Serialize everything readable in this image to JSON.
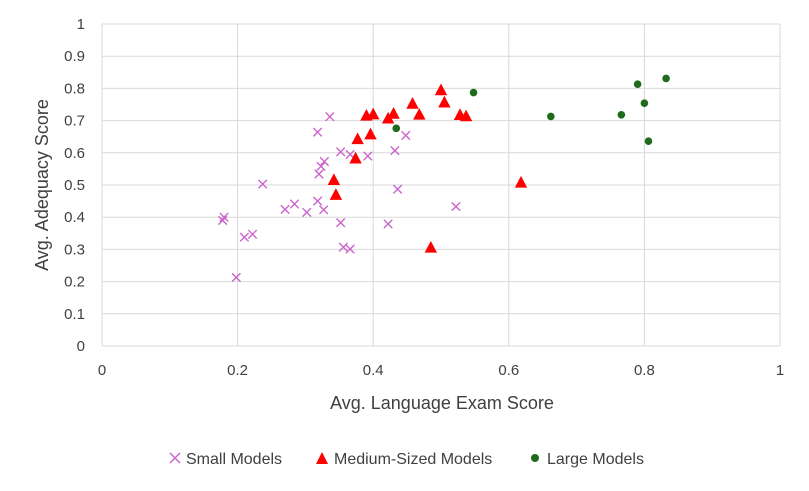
{
  "chart_data": {
    "type": "scatter",
    "title": "",
    "xlabel": "Avg. Language Exam Score",
    "ylabel": "Avg. Adequacy Score",
    "xlim": [
      0,
      1
    ],
    "ylim": [
      0,
      1
    ],
    "x_ticks": [
      0,
      0.2,
      0.4,
      0.6,
      0.8,
      1
    ],
    "x_tick_labels": [
      "0",
      "0.2",
      "0.4",
      "0.6",
      "0.8",
      "1"
    ],
    "y_ticks": [
      0,
      0.1,
      0.2,
      0.3,
      0.4,
      0.5,
      0.6,
      0.7,
      0.8,
      0.9,
      1
    ],
    "y_tick_labels": [
      "0",
      "0.1",
      "0.2",
      "0.3",
      "0.4",
      "0.5",
      "0.6",
      "0.7",
      "0.8",
      "0.9",
      "1"
    ],
    "grid": true,
    "legend_position": "bottom",
    "series": [
      {
        "name": "Small Models",
        "marker": "x",
        "color": "#cc66cc",
        "points": [
          [
            0.178,
            0.39
          ],
          [
            0.18,
            0.4
          ],
          [
            0.198,
            0.213
          ],
          [
            0.21,
            0.338
          ],
          [
            0.222,
            0.347
          ],
          [
            0.237,
            0.503
          ],
          [
            0.27,
            0.424
          ],
          [
            0.284,
            0.441
          ],
          [
            0.302,
            0.415
          ],
          [
            0.318,
            0.664
          ],
          [
            0.318,
            0.45
          ],
          [
            0.32,
            0.534
          ],
          [
            0.323,
            0.558
          ],
          [
            0.328,
            0.573
          ],
          [
            0.327,
            0.423
          ],
          [
            0.336,
            0.712
          ],
          [
            0.352,
            0.603
          ],
          [
            0.352,
            0.383
          ],
          [
            0.356,
            0.307
          ],
          [
            0.366,
            0.301
          ],
          [
            0.366,
            0.595
          ],
          [
            0.392,
            0.59
          ],
          [
            0.422,
            0.379
          ],
          [
            0.432,
            0.607
          ],
          [
            0.436,
            0.487
          ],
          [
            0.448,
            0.654
          ],
          [
            0.522,
            0.433
          ]
        ]
      },
      {
        "name": "Medium-Sized Models",
        "marker": "triangle",
        "color": "#ff0000",
        "points": [
          [
            0.342,
            0.516
          ],
          [
            0.345,
            0.47
          ],
          [
            0.374,
            0.583
          ],
          [
            0.377,
            0.643
          ],
          [
            0.39,
            0.716
          ],
          [
            0.396,
            0.658
          ],
          [
            0.4,
            0.72
          ],
          [
            0.422,
            0.707
          ],
          [
            0.43,
            0.722
          ],
          [
            0.458,
            0.753
          ],
          [
            0.468,
            0.719
          ],
          [
            0.485,
            0.306
          ],
          [
            0.5,
            0.795
          ],
          [
            0.505,
            0.757
          ],
          [
            0.528,
            0.718
          ],
          [
            0.537,
            0.714
          ],
          [
            0.618,
            0.508
          ]
        ]
      },
      {
        "name": "Large Models",
        "marker": "circle",
        "color": "#1e6b1e",
        "points": [
          [
            0.434,
            0.676
          ],
          [
            0.548,
            0.787
          ],
          [
            0.662,
            0.713
          ],
          [
            0.766,
            0.718
          ],
          [
            0.79,
            0.813
          ],
          [
            0.8,
            0.754
          ],
          [
            0.806,
            0.636
          ],
          [
            0.832,
            0.831
          ]
        ]
      }
    ]
  }
}
